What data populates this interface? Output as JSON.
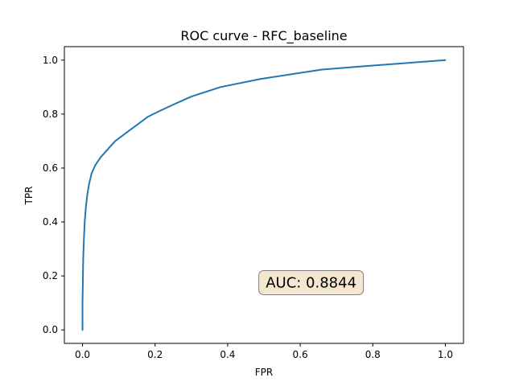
{
  "chart_data": {
    "type": "line",
    "title": "ROC curve - RFC_baseline",
    "xlabel": "FPR",
    "ylabel": "TPR",
    "xlim": [
      -0.05,
      1.05
    ],
    "ylim": [
      -0.05,
      1.05
    ],
    "xticks": [
      0.0,
      0.2,
      0.4,
      0.6,
      0.8,
      1.0
    ],
    "xtick_labels": [
      "0.0",
      "0.2",
      "0.4",
      "0.6",
      "0.8",
      "1.0"
    ],
    "yticks": [
      0.0,
      0.2,
      0.4,
      0.6,
      0.8,
      1.0
    ],
    "ytick_labels": [
      "0.0",
      "0.2",
      "0.4",
      "0.6",
      "0.8",
      "1.0"
    ],
    "grid": false,
    "series": [
      {
        "name": "ROC",
        "color": "#1f77b4",
        "x": [
          0.0,
          0.0,
          0.002,
          0.004,
          0.006,
          0.009,
          0.013,
          0.018,
          0.025,
          0.035,
          0.05,
          0.07,
          0.09,
          0.12,
          0.15,
          0.18,
          0.21,
          0.25,
          0.3,
          0.38,
          0.49,
          0.66,
          0.8,
          1.0
        ],
        "y": [
          0.0,
          0.1,
          0.27,
          0.34,
          0.4,
          0.45,
          0.5,
          0.54,
          0.58,
          0.61,
          0.64,
          0.67,
          0.7,
          0.73,
          0.76,
          0.79,
          0.81,
          0.835,
          0.865,
          0.9,
          0.93,
          0.965,
          0.98,
          1.0
        ]
      }
    ],
    "annotations": [
      {
        "text": "AUC: 0.8844",
        "x": 0.63,
        "y": 0.175,
        "box_color": "#f5e6d0",
        "border_color": "#7f7f7f"
      }
    ]
  }
}
